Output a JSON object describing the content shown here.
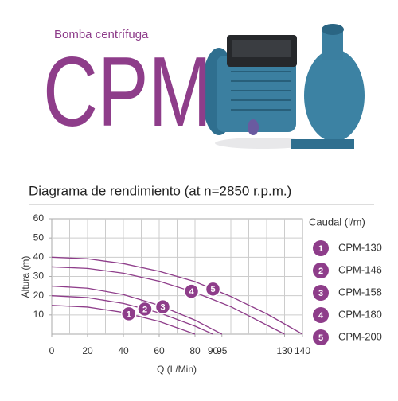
{
  "header": {
    "subtitle": "Bomba centrífuga",
    "title": "CPM"
  },
  "chart_data": {
    "type": "line",
    "title": "Diagrama de rendimiento (at n=2850 r.p.m.)",
    "x_label": "Q (L/Min)",
    "y_label": "Altura (m)",
    "xlim": [
      0,
      140
    ],
    "ylim": [
      0,
      60
    ],
    "xticks": [
      0,
      20,
      40,
      60,
      80,
      90,
      95,
      130,
      140
    ],
    "yticks": [
      10,
      20,
      30,
      40,
      50,
      60
    ],
    "grid_step": 10,
    "grid": true,
    "legend_title": "Caudal (l/m)",
    "legend_position": "right",
    "series": [
      {
        "name": "CPM-130",
        "marker": "1",
        "color": "#8e3d8a",
        "x": [
          0,
          20,
          40,
          60,
          80
        ],
        "values": [
          15,
          14.1,
          11.3,
          6.6,
          0
        ]
      },
      {
        "name": "CPM-146",
        "marker": "2",
        "color": "#8e3d8a",
        "x": [
          0,
          20,
          40,
          60,
          80,
          90
        ],
        "values": [
          20,
          19,
          16,
          11.1,
          4.2,
          0
        ]
      },
      {
        "name": "CPM-158",
        "marker": "3",
        "color": "#8e3d8a",
        "x": [
          0,
          20,
          40,
          60,
          80,
          95
        ],
        "values": [
          25,
          23.9,
          20.6,
          15,
          7.3,
          0
        ]
      },
      {
        "name": "CPM-180",
        "marker": "4",
        "color": "#8e3d8a",
        "x": [
          0,
          20,
          40,
          60,
          80,
          100,
          130
        ],
        "values": [
          35,
          34.2,
          31.7,
          27.5,
          21.7,
          14.3,
          0
        ]
      },
      {
        "name": "CPM-200",
        "marker": "5",
        "color": "#8e3d8a",
        "x": [
          0,
          20,
          40,
          60,
          80,
          100,
          120,
          140
        ],
        "values": [
          40,
          39.2,
          36.7,
          32.7,
          27.3,
          19.6,
          10.6,
          0
        ]
      }
    ]
  }
}
